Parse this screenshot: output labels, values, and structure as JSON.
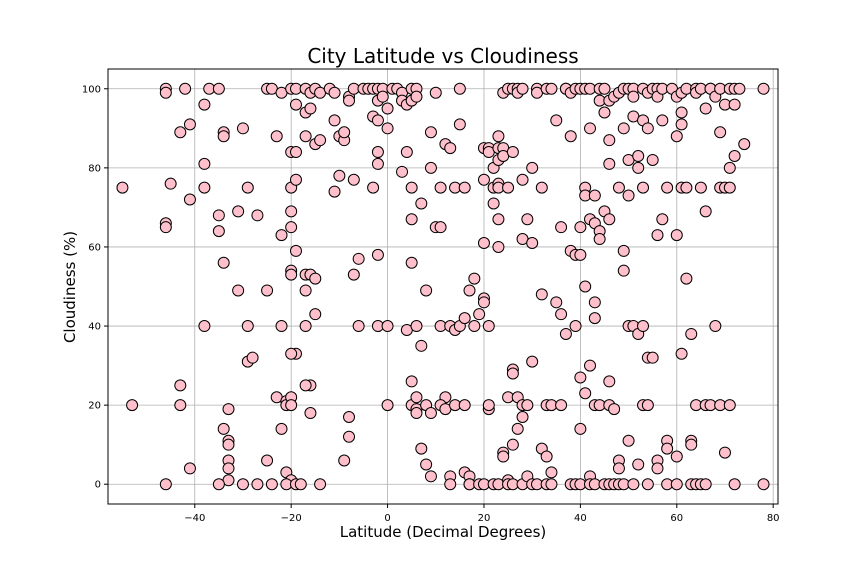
{
  "chart_data": {
    "type": "scatter",
    "title": "City Latitude vs Cloudiness",
    "xlabel": "Latitude (Decimal Degrees)",
    "ylabel": "Cloudiness (%)",
    "xlim": [
      -58,
      81
    ],
    "ylim": [
      -5,
      105
    ],
    "xticks": [
      -40,
      -20,
      0,
      20,
      40,
      60,
      80
    ],
    "yticks": [
      0,
      20,
      40,
      60,
      80,
      100
    ],
    "grid": true,
    "marker_color": "#ffc0cb",
    "marker_edge": "#000000",
    "points": [
      [
        -55,
        75
      ],
      [
        -53,
        20
      ],
      [
        -46,
        100
      ],
      [
        -46,
        99
      ],
      [
        -46,
        66
      ],
      [
        -46,
        65
      ],
      [
        -45,
        76
      ],
      [
        -46,
        0
      ],
      [
        -43,
        89
      ],
      [
        -42,
        100
      ],
      [
        -41,
        91
      ],
      [
        -41,
        72
      ],
      [
        -43,
        25
      ],
      [
        -43,
        20
      ],
      [
        -41,
        4
      ],
      [
        -38,
        81
      ],
      [
        -38,
        75
      ],
      [
        -38,
        96
      ],
      [
        -37,
        100
      ],
      [
        -38,
        40
      ],
      [
        -35,
        100
      ],
      [
        -35,
        68
      ],
      [
        -35,
        64
      ],
      [
        -34,
        89
      ],
      [
        -34,
        88
      ],
      [
        -34,
        56
      ],
      [
        -34,
        14
      ],
      [
        -33,
        19
      ],
      [
        -33,
        11
      ],
      [
        -33,
        10
      ],
      [
        -33,
        6
      ],
      [
        -33,
        4
      ],
      [
        -33,
        1
      ],
      [
        -35,
        0
      ],
      [
        -31,
        69
      ],
      [
        -31,
        49
      ],
      [
        -30,
        90
      ],
      [
        -29,
        75
      ],
      [
        -29,
        40
      ],
      [
        -29,
        31
      ],
      [
        -28,
        32
      ],
      [
        -27,
        68
      ],
      [
        -30,
        0
      ],
      [
        -27,
        0
      ],
      [
        -25,
        100
      ],
      [
        -24,
        100
      ],
      [
        -25,
        49
      ],
      [
        -25,
        6
      ],
      [
        -24,
        0
      ],
      [
        -23,
        88
      ],
      [
        -23,
        22
      ],
      [
        -22,
        99
      ],
      [
        -22,
        63
      ],
      [
        -22,
        40
      ],
      [
        -22,
        14
      ],
      [
        -21,
        21
      ],
      [
        -21,
        20
      ],
      [
        -21,
        3
      ],
      [
        -20,
        100
      ],
      [
        -19,
        100
      ],
      [
        -19,
        96
      ],
      [
        -20,
        84
      ],
      [
        -19,
        84
      ],
      [
        -20,
        75
      ],
      [
        -20,
        69
      ],
      [
        -19,
        77
      ],
      [
        -20,
        65
      ],
      [
        -19,
        59
      ],
      [
        -20,
        54
      ],
      [
        -20,
        53
      ],
      [
        -19,
        33
      ],
      [
        -20,
        33
      ],
      [
        -20,
        22
      ],
      [
        -20,
        20
      ],
      [
        -20,
        1
      ],
      [
        -21,
        0
      ],
      [
        -19,
        0
      ],
      [
        -18,
        0
      ],
      [
        -17,
        100
      ],
      [
        -17,
        94
      ],
      [
        -16,
        99
      ],
      [
        -16,
        95
      ],
      [
        -17,
        88
      ],
      [
        -17,
        53
      ],
      [
        -16,
        53
      ],
      [
        -17,
        49
      ],
      [
        -17,
        40
      ],
      [
        -16,
        25
      ],
      [
        -17,
        25
      ],
      [
        -16,
        18
      ],
      [
        -15,
        100
      ],
      [
        -14,
        99
      ],
      [
        -15,
        86
      ],
      [
        -14,
        87
      ],
      [
        -15,
        52
      ],
      [
        -15,
        43
      ],
      [
        -14,
        0
      ],
      [
        -12,
        100
      ],
      [
        -11,
        99
      ],
      [
        -11,
        92
      ],
      [
        -11,
        74
      ],
      [
        -10,
        78
      ],
      [
        -10,
        88
      ],
      [
        -9,
        87
      ],
      [
        -9,
        89
      ],
      [
        -8,
        98
      ],
      [
        -8,
        97
      ],
      [
        -9,
        6
      ],
      [
        -8,
        12
      ],
      [
        -8,
        17
      ],
      [
        -7,
        100
      ],
      [
        -7,
        77
      ],
      [
        -7,
        53
      ],
      [
        -6,
        57
      ],
      [
        -6,
        40
      ],
      [
        -5,
        100
      ],
      [
        -4,
        100
      ],
      [
        -3,
        100
      ],
      [
        -2,
        100
      ],
      [
        -1,
        100
      ],
      [
        1,
        100
      ],
      [
        2,
        100
      ],
      [
        -3,
        93
      ],
      [
        -2,
        92
      ],
      [
        -2,
        97
      ],
      [
        -1,
        98
      ],
      [
        -2,
        84
      ],
      [
        -2,
        81
      ],
      [
        0,
        95
      ],
      [
        0,
        90
      ],
      [
        -3,
        75
      ],
      [
        -2,
        58
      ],
      [
        -2,
        40
      ],
      [
        0,
        40
      ],
      [
        0,
        20
      ],
      [
        3,
        99
      ],
      [
        3,
        97
      ],
      [
        4,
        96
      ],
      [
        5,
        97
      ],
      [
        5,
        100
      ],
      [
        6,
        100
      ],
      [
        6,
        98
      ],
      [
        3,
        79
      ],
      [
        4,
        84
      ],
      [
        4,
        39
      ],
      [
        5,
        75
      ],
      [
        5,
        67
      ],
      [
        5,
        56
      ],
      [
        5,
        26
      ],
      [
        5,
        20
      ],
      [
        6,
        40
      ],
      [
        6,
        22
      ],
      [
        6,
        19
      ],
      [
        6,
        18
      ],
      [
        7,
        71
      ],
      [
        7,
        35
      ],
      [
        7,
        9
      ],
      [
        8,
        49
      ],
      [
        8,
        5
      ],
      [
        8,
        20
      ],
      [
        9,
        80
      ],
      [
        9,
        18
      ],
      [
        9,
        2
      ],
      [
        10,
        99
      ],
      [
        9,
        89
      ],
      [
        10,
        65
      ],
      [
        11,
        65
      ],
      [
        11,
        40
      ],
      [
        11,
        75
      ],
      [
        12,
        86
      ],
      [
        12,
        22
      ],
      [
        11,
        20
      ],
      [
        12,
        19
      ],
      [
        13,
        85
      ],
      [
        13,
        40
      ],
      [
        13,
        2
      ],
      [
        13,
        0
      ],
      [
        14,
        75
      ],
      [
        14,
        39
      ],
      [
        14,
        20
      ],
      [
        15,
        100
      ],
      [
        15,
        91
      ],
      [
        16,
        75
      ],
      [
        15,
        40
      ],
      [
        16,
        42
      ],
      [
        16,
        20
      ],
      [
        16,
        3
      ],
      [
        17,
        2
      ],
      [
        17,
        0
      ],
      [
        17,
        49
      ],
      [
        17,
        0
      ],
      [
        18,
        52
      ],
      [
        18,
        40
      ],
      [
        19,
        43
      ],
      [
        19,
        0
      ],
      [
        20,
        85
      ],
      [
        20,
        77
      ],
      [
        20,
        61
      ],
      [
        20,
        47
      ],
      [
        20,
        46
      ],
      [
        20,
        0
      ],
      [
        21,
        85
      ],
      [
        21,
        84
      ],
      [
        21,
        40
      ],
      [
        21,
        19
      ],
      [
        21,
        20
      ],
      [
        22,
        75
      ],
      [
        22,
        71
      ],
      [
        22,
        80
      ],
      [
        22,
        0
      ],
      [
        23,
        88
      ],
      [
        23,
        85
      ],
      [
        23,
        82
      ],
      [
        23,
        76
      ],
      [
        23,
        75
      ],
      [
        23,
        67
      ],
      [
        23,
        60
      ],
      [
        23,
        0
      ],
      [
        24,
        85
      ],
      [
        24,
        83
      ],
      [
        24,
        8
      ],
      [
        24,
        7
      ],
      [
        24,
        99
      ],
      [
        25,
        100
      ],
      [
        25,
        75
      ],
      [
        25,
        22
      ],
      [
        25,
        1
      ],
      [
        25,
        0
      ],
      [
        26,
        100
      ],
      [
        26,
        84
      ],
      [
        26,
        29
      ],
      [
        26,
        28
      ],
      [
        26,
        10
      ],
      [
        26,
        0
      ],
      [
        27,
        100
      ],
      [
        27,
        99
      ],
      [
        27,
        22
      ],
      [
        27,
        14
      ],
      [
        28,
        100
      ],
      [
        28,
        77
      ],
      [
        28,
        62
      ],
      [
        28,
        20
      ],
      [
        28,
        17
      ],
      [
        28,
        0
      ],
      [
        29,
        67
      ],
      [
        29,
        20
      ],
      [
        29,
        2
      ],
      [
        30,
        80
      ],
      [
        30,
        61
      ],
      [
        30,
        31
      ],
      [
        30,
        0
      ],
      [
        31,
        100
      ],
      [
        31,
        99
      ],
      [
        31,
        0
      ],
      [
        32,
        75
      ],
      [
        32,
        48
      ],
      [
        32,
        9
      ],
      [
        33,
        100
      ],
      [
        33,
        20
      ],
      [
        33,
        7
      ],
      [
        33,
        0
      ],
      [
        34,
        100
      ],
      [
        34,
        20
      ],
      [
        34,
        3
      ],
      [
        34,
        0
      ],
      [
        35,
        92
      ],
      [
        35,
        46
      ],
      [
        36,
        65
      ],
      [
        36,
        43
      ],
      [
        36,
        20
      ],
      [
        37,
        38
      ],
      [
        37,
        100
      ],
      [
        37,
        100
      ],
      [
        38,
        99
      ],
      [
        38,
        88
      ],
      [
        38,
        59
      ],
      [
        38,
        0
      ],
      [
        39,
        100
      ],
      [
        39,
        58
      ],
      [
        39,
        40
      ],
      [
        39,
        0
      ],
      [
        40,
        100
      ],
      [
        40,
        65
      ],
      [
        40,
        58
      ],
      [
        40,
        27
      ],
      [
        40,
        14
      ],
      [
        40,
        0
      ],
      [
        41,
        75
      ],
      [
        41,
        73
      ],
      [
        41,
        50
      ],
      [
        41,
        23
      ],
      [
        41,
        100
      ],
      [
        42,
        100
      ],
      [
        42,
        90
      ],
      [
        42,
        67
      ],
      [
        42,
        30
      ],
      [
        42,
        2
      ],
      [
        42,
        0
      ],
      [
        43,
        73
      ],
      [
        43,
        66
      ],
      [
        43,
        46
      ],
      [
        43,
        42
      ],
      [
        43,
        20
      ],
      [
        43,
        0
      ],
      [
        44,
        100
      ],
      [
        44,
        97
      ],
      [
        44,
        64
      ],
      [
        44,
        62
      ],
      [
        44,
        20
      ],
      [
        45,
        100
      ],
      [
        45,
        94
      ],
      [
        45,
        69
      ],
      [
        45,
        0
      ],
      [
        46,
        97
      ],
      [
        46,
        87
      ],
      [
        46,
        81
      ],
      [
        46,
        67
      ],
      [
        46,
        26
      ],
      [
        46,
        20
      ],
      [
        46,
        0
      ],
      [
        47,
        98
      ],
      [
        47,
        19
      ],
      [
        47,
        0
      ],
      [
        48,
        99
      ],
      [
        48,
        75
      ],
      [
        48,
        6
      ],
      [
        48,
        4
      ],
      [
        48,
        0
      ],
      [
        49,
        100
      ],
      [
        49,
        90
      ],
      [
        49,
        59
      ],
      [
        49,
        54
      ],
      [
        49,
        0
      ],
      [
        50,
        100
      ],
      [
        50,
        82
      ],
      [
        50,
        73
      ],
      [
        50,
        11
      ],
      [
        50,
        40
      ],
      [
        51,
        100
      ],
      [
        51,
        98
      ],
      [
        51,
        93
      ],
      [
        51,
        40
      ],
      [
        51,
        0
      ],
      [
        52,
        83
      ],
      [
        52,
        80
      ],
      [
        52,
        38
      ],
      [
        52,
        5
      ],
      [
        53,
        100
      ],
      [
        53,
        92
      ],
      [
        53,
        75
      ],
      [
        53,
        40
      ],
      [
        53,
        20
      ],
      [
        54,
        99
      ],
      [
        54,
        90
      ],
      [
        54,
        20
      ],
      [
        54,
        32
      ],
      [
        54,
        0
      ],
      [
        55,
        100
      ],
      [
        55,
        82
      ],
      [
        55,
        32
      ],
      [
        56,
        100
      ],
      [
        56,
        98
      ],
      [
        56,
        63
      ],
      [
        56,
        6
      ],
      [
        56,
        4
      ],
      [
        57,
        67
      ],
      [
        57,
        92
      ],
      [
        57,
        100
      ],
      [
        58,
        0
      ],
      [
        58,
        11
      ],
      [
        58,
        9
      ],
      [
        58,
        75
      ],
      [
        59,
        100
      ],
      [
        60,
        98
      ],
      [
        60,
        88
      ],
      [
        60,
        63
      ],
      [
        60,
        7
      ],
      [
        60,
        0
      ],
      [
        61,
        99
      ],
      [
        61,
        94
      ],
      [
        61,
        91
      ],
      [
        61,
        75
      ],
      [
        61,
        33
      ],
      [
        62,
        100
      ],
      [
        62,
        75
      ],
      [
        62,
        52
      ],
      [
        63,
        38
      ],
      [
        63,
        11
      ],
      [
        63,
        10
      ],
      [
        63,
        0
      ],
      [
        64,
        100
      ],
      [
        64,
        99
      ],
      [
        64,
        20
      ],
      [
        64,
        0
      ],
      [
        65,
        100
      ],
      [
        65,
        75
      ],
      [
        65,
        0
      ],
      [
        66,
        95
      ],
      [
        66,
        69
      ],
      [
        66,
        20
      ],
      [
        66,
        0
      ],
      [
        67,
        100
      ],
      [
        67,
        100
      ],
      [
        67,
        20
      ],
      [
        68,
        98
      ],
      [
        68,
        40
      ],
      [
        69,
        100
      ],
      [
        69,
        89
      ],
      [
        69,
        75
      ],
      [
        69,
        20
      ],
      [
        70,
        96
      ],
      [
        70,
        75
      ],
      [
        70,
        8
      ],
      [
        71,
        100
      ],
      [
        71,
        75
      ],
      [
        71,
        80
      ],
      [
        71,
        20
      ],
      [
        72,
        100
      ],
      [
        72,
        96
      ],
      [
        72,
        83
      ],
      [
        72,
        0
      ],
      [
        73,
        100
      ],
      [
        74,
        86
      ],
      [
        78,
        100
      ],
      [
        78,
        0
      ]
    ]
  }
}
